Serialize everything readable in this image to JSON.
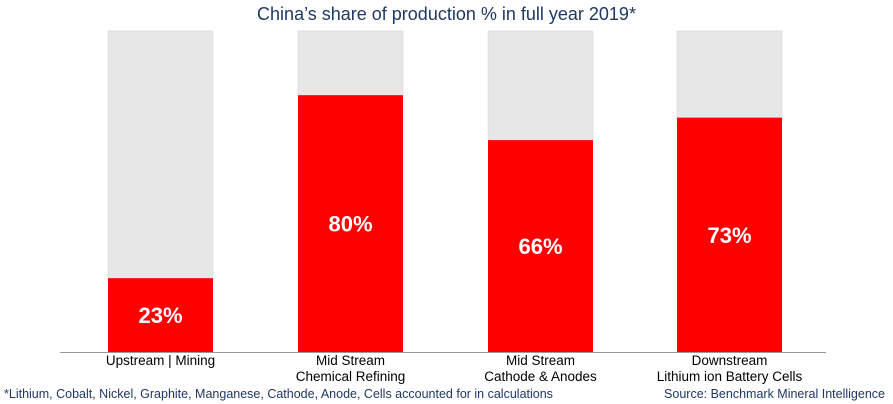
{
  "chart_data": {
    "type": "bar",
    "title": "China’s share of production % in full year 2019*",
    "categories": [
      [
        "Upstream | Mining"
      ],
      [
        "Mid Stream",
        "Chemical Refining"
      ],
      [
        "Mid Stream",
        "Cathode & Anodes"
      ],
      [
        "Downstream",
        "Lithium ion Battery Cells"
      ]
    ],
    "series": [
      {
        "values": [
          23,
          80,
          66,
          73
        ]
      }
    ],
    "value_labels": [
      "23%",
      "80%",
      "66%",
      "73%"
    ],
    "ylim": [
      0,
      100
    ],
    "stacked_remainder": true,
    "colors": {
      "share": "#ff0000",
      "remainder": "#e7e7e7",
      "label": "#ffffff",
      "text": "#1f3864"
    },
    "grid": false,
    "legend": "none"
  },
  "footnote": "*Lithium, Cobalt, Nickel, Graphite, Manganese, Cathode, Anode, Cells accounted for in calculations",
  "source": "Source: Benchmark Mineral Intelligence"
}
